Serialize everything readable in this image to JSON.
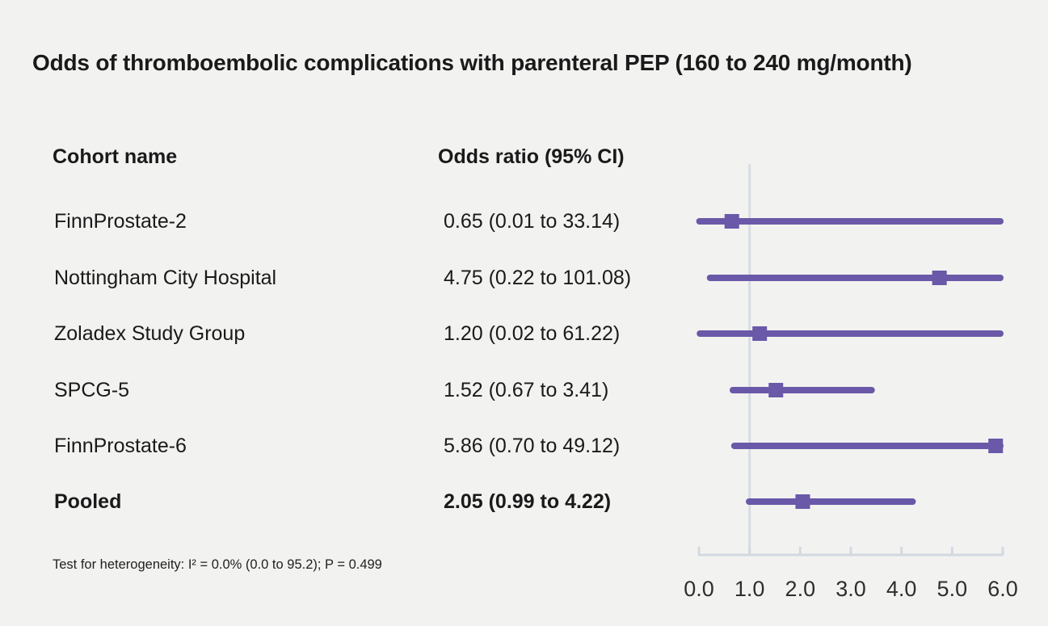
{
  "title": "Odds of thromboembolic complications with parenteral PEP (160 to 240 mg/month)",
  "table": {
    "col_cohort": "Cohort name",
    "col_or": "Odds ratio (95% CI)"
  },
  "footnote": "Test for heterogeneity: I² = 0.0% (0.0 to 95.2); P = 0.499",
  "chart_data": {
    "type": "forest",
    "title": "Odds of thromboembolic complications with parenteral PEP (160 to 240 mg/month)",
    "xlabel": "",
    "ylabel": "",
    "xlim": [
      0.0,
      6.0
    ],
    "x_ticks": [
      0.0,
      1.0,
      2.0,
      3.0,
      4.0,
      5.0,
      6.0
    ],
    "x_tick_labels": [
      "0.0",
      "1.0",
      "2.0",
      "3.0",
      "4.0",
      "5.0",
      "6.0"
    ],
    "reference_line_x": 1.0,
    "grid": false,
    "legend": false,
    "rows": [
      {
        "cohort": "FinnProstate-2",
        "or": 0.65,
        "ci_low": 0.01,
        "ci_high": 33.14,
        "or_text": "0.65 (0.01 to 33.14)",
        "pooled": false
      },
      {
        "cohort": "Nottingham City Hospital",
        "or": 4.75,
        "ci_low": 0.22,
        "ci_high": 101.08,
        "or_text": "4.75 (0.22 to 101.08)",
        "pooled": false
      },
      {
        "cohort": "Zoladex Study Group",
        "or": 1.2,
        "ci_low": 0.02,
        "ci_high": 61.22,
        "or_text": "1.20 (0.02 to 61.22)",
        "pooled": false
      },
      {
        "cohort": "SPCG-5",
        "or": 1.52,
        "ci_low": 0.67,
        "ci_high": 3.41,
        "or_text": "1.52 (0.67 to 3.41)",
        "pooled": false
      },
      {
        "cohort": "FinnProstate-6",
        "or": 5.86,
        "ci_low": 0.7,
        "ci_high": 49.12,
        "or_text": "5.86 (0.70 to 49.12)",
        "pooled": false
      },
      {
        "cohort": "Pooled",
        "or": 2.05,
        "ci_low": 0.99,
        "ci_high": 4.22,
        "or_text": "2.05 (0.99 to 4.22)",
        "pooled": true
      }
    ],
    "colors": {
      "marker": "#6a58a8",
      "ci_line": "#6a58a8",
      "reference_line": "#d7dde4",
      "axis": "#d3d9e0",
      "text": "#1a1a1a",
      "background": "#f2f2f1"
    }
  }
}
